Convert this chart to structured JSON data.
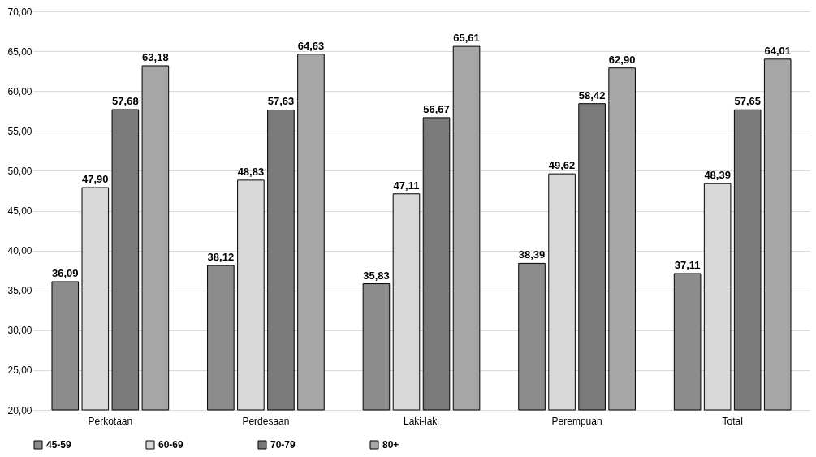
{
  "chart_data": {
    "type": "bar",
    "categories": [
      "Perkotaan",
      "Perdesaan",
      "Laki-laki",
      "Perempuan",
      "Total"
    ],
    "series": [
      {
        "name": "45-59",
        "color": "#8c8c8c",
        "values": [
          36.09,
          38.12,
          35.83,
          38.39,
          37.11
        ],
        "value_labels": [
          "36,09",
          "38,12",
          "35,83",
          "38,39",
          "37,11"
        ]
      },
      {
        "name": "60-69",
        "color": "#d9d9d9",
        "values": [
          47.9,
          48.83,
          47.11,
          49.62,
          48.39
        ],
        "value_labels": [
          "47,90",
          "48,83",
          "47,11",
          "49,62",
          "48,39"
        ]
      },
      {
        "name": "70-79",
        "color": "#7a7a7a",
        "values": [
          57.68,
          57.63,
          56.67,
          58.42,
          57.65
        ],
        "value_labels": [
          "57,68",
          "57,63",
          "56,67",
          "58,42",
          "57,65"
        ]
      },
      {
        "name": "80+",
        "color": "#a6a6a6",
        "values": [
          63.18,
          64.63,
          65.61,
          62.9,
          64.01
        ],
        "value_labels": [
          "63,18",
          "64,63",
          "65,61",
          "62,90",
          "64,01"
        ]
      }
    ],
    "ylim": [
      20,
      70
    ],
    "yticks": [
      {
        "value": 20,
        "label": "20,00"
      },
      {
        "value": 25,
        "label": "25,00"
      },
      {
        "value": 30,
        "label": "30,00"
      },
      {
        "value": 35,
        "label": "35,00"
      },
      {
        "value": 40,
        "label": "40,00"
      },
      {
        "value": 45,
        "label": "45,00"
      },
      {
        "value": 50,
        "label": "50,00"
      },
      {
        "value": 55,
        "label": "55,00"
      },
      {
        "value": 60,
        "label": "60,00"
      },
      {
        "value": 65,
        "label": "65,00"
      },
      {
        "value": 70,
        "label": "70,00"
      }
    ],
    "grid": "y",
    "legend": "bottom"
  }
}
